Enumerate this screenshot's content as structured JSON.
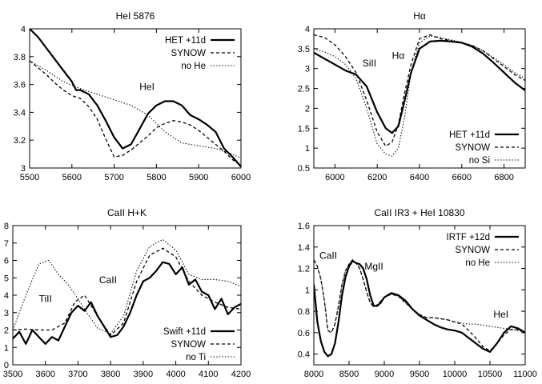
{
  "chart_data": [
    {
      "type": "line",
      "title": "HeI 5876",
      "xlabel": "",
      "ylabel": "",
      "xlim": [
        5500,
        6000
      ],
      "ylim": [
        3,
        4
      ],
      "xticks": [
        5500,
        5600,
        5700,
        5800,
        5900,
        6000
      ],
      "yticks": [
        3,
        3.2,
        3.4,
        3.6,
        3.8,
        4
      ],
      "ytick_labels": [
        "3",
        "3.2",
        "3.4",
        "3.6",
        "3.8",
        "4"
      ],
      "legend": "top-right",
      "annotations": [
        {
          "text": "HeI",
          "x": 5760,
          "y": 3.56
        }
      ],
      "series": [
        {
          "name": "HET +11d",
          "style": "solid",
          "x": [
            5500,
            5520,
            5540,
            5560,
            5580,
            5600,
            5610,
            5620,
            5640,
            5660,
            5680,
            5700,
            5720,
            5740,
            5760,
            5780,
            5800,
            5820,
            5840,
            5860,
            5880,
            5900,
            5920,
            5940,
            5960,
            5980,
            6000
          ],
          "y": [
            4.0,
            3.94,
            3.86,
            3.78,
            3.7,
            3.62,
            3.56,
            3.56,
            3.53,
            3.45,
            3.34,
            3.22,
            3.14,
            3.17,
            3.28,
            3.39,
            3.45,
            3.48,
            3.48,
            3.45,
            3.38,
            3.35,
            3.31,
            3.26,
            3.14,
            3.08,
            3.01
          ]
        },
        {
          "name": "SYNOW",
          "style": "dashed",
          "x": [
            5500,
            5520,
            5540,
            5560,
            5580,
            5600,
            5620,
            5640,
            5660,
            5680,
            5700,
            5720,
            5740,
            5760,
            5780,
            5800,
            5820,
            5840,
            5860,
            5880,
            5900,
            5920,
            5940,
            5960,
            5980,
            6000
          ],
          "y": [
            3.77,
            3.72,
            3.67,
            3.61,
            3.56,
            3.52,
            3.5,
            3.44,
            3.35,
            3.21,
            3.08,
            3.09,
            3.13,
            3.18,
            3.23,
            3.29,
            3.32,
            3.34,
            3.33,
            3.31,
            3.27,
            3.22,
            3.17,
            3.12,
            3.06,
            3.02
          ]
        },
        {
          "name": "no He",
          "style": "dotted",
          "x": [
            5500,
            5540,
            5580,
            5620,
            5660,
            5700,
            5740,
            5780,
            5820,
            5860,
            5900,
            5940,
            5980,
            6000
          ],
          "y": [
            3.77,
            3.7,
            3.62,
            3.57,
            3.53,
            3.49,
            3.45,
            3.38,
            3.26,
            3.18,
            3.16,
            3.14,
            3.1,
            3.07
          ]
        }
      ]
    },
    {
      "type": "line",
      "title": "Hα",
      "xlabel": "",
      "ylabel": "",
      "xlim": [
        5900,
        6900
      ],
      "ylim": [
        0.5,
        4
      ],
      "xticks": [
        6000,
        6200,
        6400,
        6600,
        6800
      ],
      "yticks": [
        0.5,
        1,
        1.5,
        2,
        2.5,
        3,
        3.5,
        4
      ],
      "ytick_labels": [
        "0.5",
        "1",
        "1.5",
        "2",
        "2.5",
        "3",
        "3.5",
        "4"
      ],
      "legend": "bottom-right",
      "annotations": [
        {
          "text": "SiII",
          "x": 6130,
          "y": 3.05
        },
        {
          "text": "Hα",
          "x": 6270,
          "y": 3.25
        }
      ],
      "series": [
        {
          "name": "HET +11d",
          "style": "solid",
          "x": [
            5900,
            5950,
            6000,
            6050,
            6100,
            6150,
            6200,
            6240,
            6270,
            6300,
            6330,
            6360,
            6400,
            6450,
            6500,
            6550,
            6600,
            6650,
            6700,
            6750,
            6800,
            6850,
            6900
          ],
          "y": [
            3.4,
            3.25,
            3.1,
            2.95,
            2.85,
            2.55,
            1.9,
            1.5,
            1.38,
            1.55,
            2.2,
            2.9,
            3.5,
            3.68,
            3.7,
            3.68,
            3.65,
            3.55,
            3.38,
            3.15,
            2.9,
            2.65,
            2.45
          ]
        },
        {
          "name": "SYNOW",
          "style": "dashed",
          "x": [
            5900,
            5950,
            6000,
            6050,
            6100,
            6150,
            6200,
            6240,
            6270,
            6300,
            6330,
            6360,
            6400,
            6450,
            6500,
            6550,
            6600,
            6650,
            6700,
            6750,
            6800,
            6850,
            6900
          ],
          "y": [
            3.85,
            3.78,
            3.6,
            3.3,
            2.9,
            2.2,
            1.4,
            1.05,
            1.15,
            1.6,
            2.4,
            3.1,
            3.75,
            3.85,
            3.75,
            3.7,
            3.65,
            3.58,
            3.45,
            3.25,
            3.05,
            2.85,
            2.7
          ]
        },
        {
          "name": "no Si",
          "style": "dotted",
          "x": [
            5900,
            5950,
            6000,
            6050,
            6100,
            6150,
            6200,
            6240,
            6270,
            6300,
            6330,
            6360,
            6400,
            6450,
            6500,
            6550,
            6600,
            6650,
            6700,
            6750,
            6800,
            6850,
            6900
          ],
          "y": [
            3.5,
            3.42,
            3.3,
            3.1,
            2.75,
            2.0,
            1.1,
            0.85,
            0.8,
            1.0,
            1.8,
            2.9,
            3.65,
            3.82,
            3.78,
            3.72,
            3.66,
            3.58,
            3.45,
            3.28,
            3.1,
            2.9,
            2.75
          ]
        }
      ]
    },
    {
      "type": "line",
      "title": "CaII H+K",
      "xlabel": "",
      "ylabel": "",
      "xlim": [
        3500,
        4200
      ],
      "ylim": [
        0,
        8
      ],
      "xticks": [
        3500,
        3600,
        3700,
        3800,
        3900,
        4000,
        4100,
        4200
      ],
      "yticks": [
        0,
        1,
        2,
        3,
        4,
        5,
        6,
        7,
        8
      ],
      "ytick_labels": [
        "0",
        "1",
        "2",
        "3",
        "4",
        "5",
        "6",
        "7",
        "8"
      ],
      "legend": "bottom-right",
      "annotations": [
        {
          "text": "TiII",
          "x": 3580,
          "y": 3.6
        },
        {
          "text": "CaII",
          "x": 3765,
          "y": 4.7
        }
      ],
      "series": [
        {
          "name": "Swift +11d",
          "style": "solid",
          "x": [
            3500,
            3520,
            3540,
            3560,
            3580,
            3600,
            3620,
            3640,
            3660,
            3680,
            3700,
            3720,
            3740,
            3760,
            3780,
            3800,
            3820,
            3840,
            3860,
            3880,
            3900,
            3920,
            3940,
            3960,
            3980,
            4000,
            4020,
            4040,
            4060,
            4080,
            4100,
            4120,
            4140,
            4160,
            4180,
            4200
          ],
          "y": [
            1.5,
            1.9,
            1.2,
            2.0,
            1.6,
            1.2,
            1.6,
            1.4,
            2.2,
            3.0,
            3.4,
            3.1,
            3.6,
            2.8,
            2.2,
            1.6,
            1.7,
            2.2,
            3.0,
            4.0,
            4.8,
            5.0,
            5.4,
            5.9,
            5.8,
            5.2,
            5.6,
            4.6,
            4.9,
            4.2,
            4.0,
            3.2,
            3.8,
            2.9,
            3.3,
            3.5
          ]
        },
        {
          "name": "SYNOW",
          "style": "dashed",
          "x": [
            3500,
            3540,
            3580,
            3620,
            3660,
            3690,
            3720,
            3760,
            3800,
            3840,
            3880,
            3920,
            3960,
            4000,
            4040,
            4080,
            4120,
            4160,
            4200
          ],
          "y": [
            2.0,
            2.05,
            2.0,
            2.0,
            2.4,
            3.6,
            4.0,
            2.8,
            1.7,
            2.4,
            4.8,
            6.3,
            6.7,
            6.2,
            4.8,
            4.0,
            3.6,
            3.3,
            3.2
          ]
        },
        {
          "name": "no Ti",
          "style": "dotted",
          "x": [
            3500,
            3540,
            3580,
            3610,
            3640,
            3670,
            3700,
            3720,
            3760,
            3800,
            3840,
            3880,
            3920,
            3960,
            4000,
            4040,
            4080,
            4120,
            4160,
            4200
          ],
          "y": [
            2.0,
            4.0,
            5.8,
            6.0,
            5.2,
            4.6,
            3.8,
            3.2,
            2.1,
            1.8,
            2.8,
            5.4,
            6.8,
            7.2,
            6.6,
            5.2,
            4.9,
            4.9,
            4.8,
            4.5
          ]
        }
      ]
    },
    {
      "type": "line",
      "title": "CaII IR3 + HeI 10830",
      "xlabel": "",
      "ylabel": "",
      "xlim": [
        8000,
        11000
      ],
      "ylim": [
        0.3,
        1.6
      ],
      "xticks": [
        8000,
        8500,
        9000,
        9500,
        10000,
        10500,
        11000
      ],
      "yticks": [
        0.4,
        0.6,
        0.8,
        1,
        1.2,
        1.4,
        1.6
      ],
      "ytick_labels": [
        "0.4",
        "0.6",
        "0.8",
        "1",
        "1.2",
        "1.4",
        "1.6"
      ],
      "legend": "top-right",
      "annotations": [
        {
          "text": "CaII",
          "x": 8080,
          "y": 1.29
        },
        {
          "text": "MgII",
          "x": 8720,
          "y": 1.19
        },
        {
          "text": "HeI",
          "x": 10550,
          "y": 0.74
        }
      ],
      "series": [
        {
          "name": "IRTF +12d",
          "style": "solid",
          "x": [
            8000,
            8050,
            8100,
            8150,
            8200,
            8250,
            8300,
            8350,
            8400,
            8450,
            8500,
            8550,
            8600,
            8650,
            8700,
            8750,
            8800,
            8850,
            8900,
            8950,
            9000,
            9100,
            9200,
            9300,
            9400,
            9500,
            9600,
            9700,
            9800,
            9900,
            10000,
            10100,
            10200,
            10300,
            10400,
            10500,
            10600,
            10700,
            10800,
            10900,
            11000
          ],
          "y": [
            1.05,
            0.7,
            0.52,
            0.42,
            0.38,
            0.4,
            0.5,
            0.7,
            0.95,
            1.12,
            1.22,
            1.27,
            1.25,
            1.24,
            1.2,
            1.1,
            0.95,
            0.85,
            0.85,
            0.88,
            0.93,
            0.97,
            0.95,
            0.9,
            0.82,
            0.76,
            0.72,
            0.68,
            0.65,
            0.63,
            0.62,
            0.6,
            0.55,
            0.5,
            0.45,
            0.42,
            0.5,
            0.6,
            0.66,
            0.64,
            0.6
          ]
        },
        {
          "name": "SYNOW",
          "style": "dashed",
          "x": [
            8000,
            8050,
            8100,
            8150,
            8200,
            8250,
            8300,
            8350,
            8400,
            8450,
            8500,
            8550,
            8600,
            8650,
            8700,
            8750,
            8800,
            8850,
            8900,
            9000,
            9100,
            9200,
            9300,
            9400,
            9500,
            9600,
            9700,
            9800,
            9900,
            10000,
            10100,
            10200,
            10300,
            10400,
            10500,
            10600,
            10700,
            10800,
            10900,
            11000
          ],
          "y": [
            1.28,
            1.22,
            1.1,
            0.9,
            0.62,
            0.6,
            0.68,
            0.85,
            1.05,
            1.18,
            1.24,
            1.28,
            1.25,
            1.2,
            1.1,
            0.98,
            0.88,
            0.84,
            0.86,
            0.93,
            0.96,
            0.94,
            0.88,
            0.82,
            0.77,
            0.74,
            0.74,
            0.73,
            0.72,
            0.7,
            0.68,
            0.62,
            0.55,
            0.47,
            0.43,
            0.5,
            0.58,
            0.63,
            0.63,
            0.6
          ]
        },
        {
          "name": "no He",
          "style": "dotted",
          "x": [
            8000,
            8050,
            8100,
            8150,
            8200,
            8250,
            8300,
            8350,
            8400,
            8450,
            8500,
            8550,
            8600,
            8650,
            8700,
            8750,
            8800,
            8850,
            8900,
            9000,
            9100,
            9200,
            9300,
            9400,
            9500,
            9600,
            9700,
            9800,
            9900,
            10000,
            10100,
            10200,
            10300,
            10400,
            10500,
            10600,
            10700,
            10800,
            10900,
            11000
          ],
          "y": [
            1.28,
            1.22,
            1.1,
            0.9,
            0.62,
            0.6,
            0.68,
            0.85,
            1.05,
            1.18,
            1.24,
            1.28,
            1.25,
            1.2,
            1.1,
            0.98,
            0.88,
            0.84,
            0.86,
            0.93,
            0.96,
            0.94,
            0.88,
            0.82,
            0.77,
            0.74,
            0.74,
            0.73,
            0.72,
            0.7,
            0.69,
            0.68,
            0.68,
            0.67,
            0.66,
            0.65,
            0.64,
            0.63,
            0.62,
            0.6
          ]
        }
      ]
    }
  ]
}
